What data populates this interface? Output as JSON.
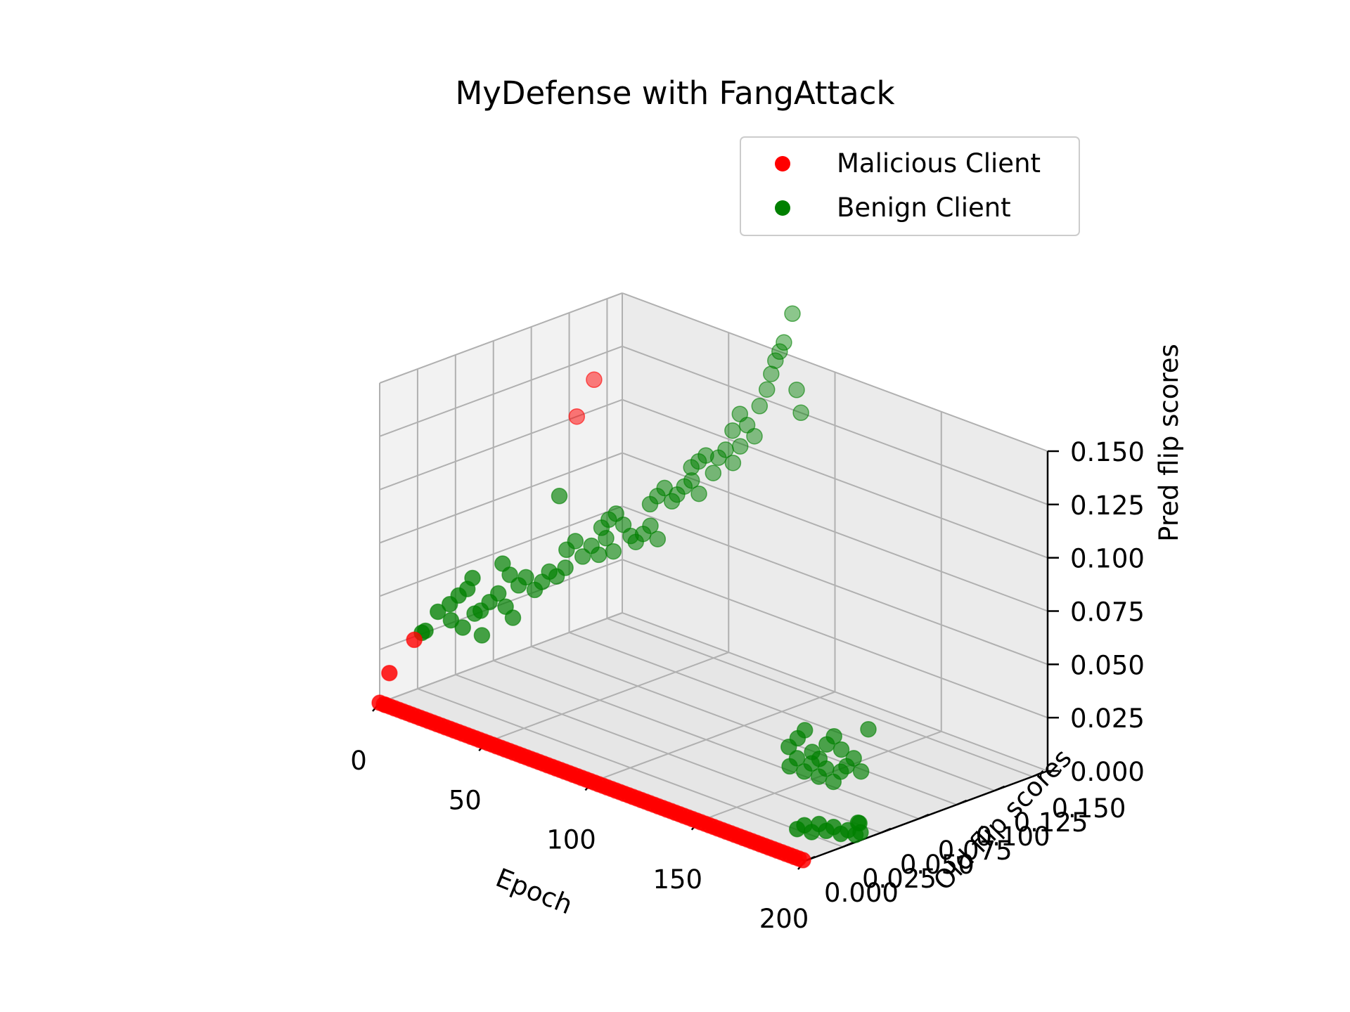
{
  "chart_data": {
    "type": "scatter",
    "projection": "3d",
    "title": "MyDefense with FangAttack",
    "xlabel": "Epoch",
    "ylabel": "Old flip scores",
    "zlabel": "Pred flip scores",
    "xlim": [
      0,
      200
    ],
    "ylim": [
      0,
      0.16
    ],
    "zlim": [
      0,
      0.15
    ],
    "xticks": [
      "0",
      "50",
      "100",
      "150",
      "200"
    ],
    "yticks": [
      "0.000",
      "0.025",
      "0.050",
      "0.075",
      "0.100",
      "0.125",
      "0.150"
    ],
    "zticks": [
      "0.000",
      "0.025",
      "0.050",
      "0.075",
      "0.100",
      "0.125",
      "0.150"
    ],
    "grid": true,
    "legend_position": "top-right",
    "series": [
      {
        "name": "Malicious Client",
        "color": "#ff0000",
        "points": [
          [
            0,
            0,
            0
          ],
          [
            2,
            0,
            0
          ],
          [
            3,
            0,
            0
          ],
          [
            5,
            0,
            0
          ],
          [
            7,
            0,
            0
          ],
          [
            9,
            0,
            0
          ],
          [
            11,
            0,
            0
          ],
          [
            13,
            0,
            0
          ],
          [
            15,
            0,
            0
          ],
          [
            17,
            0,
            0
          ],
          [
            19,
            0,
            0
          ],
          [
            21,
            0,
            0
          ],
          [
            23,
            0,
            0
          ],
          [
            25,
            0,
            0
          ],
          [
            27,
            0,
            0
          ],
          [
            29,
            0,
            0
          ],
          [
            31,
            0,
            0
          ],
          [
            33,
            0,
            0
          ],
          [
            35,
            0,
            0
          ],
          [
            37,
            0,
            0
          ],
          [
            39,
            0,
            0
          ],
          [
            41,
            0,
            0
          ],
          [
            43,
            0,
            0
          ],
          [
            45,
            0,
            0
          ],
          [
            47,
            0,
            0
          ],
          [
            49,
            0,
            0
          ],
          [
            51,
            0,
            0
          ],
          [
            53,
            0,
            0
          ],
          [
            55,
            0,
            0
          ],
          [
            57,
            0,
            0
          ],
          [
            59,
            0,
            0
          ],
          [
            61,
            0,
            0
          ],
          [
            63,
            0,
            0
          ],
          [
            65,
            0,
            0
          ],
          [
            67,
            0,
            0
          ],
          [
            69,
            0,
            0
          ],
          [
            71,
            0,
            0
          ],
          [
            73,
            0,
            0
          ],
          [
            75,
            0,
            0
          ],
          [
            77,
            0,
            0
          ],
          [
            79,
            0,
            0
          ],
          [
            81,
            0,
            0
          ],
          [
            83,
            0,
            0
          ],
          [
            85,
            0,
            0
          ],
          [
            87,
            0,
            0
          ],
          [
            89,
            0,
            0
          ],
          [
            91,
            0,
            0
          ],
          [
            93,
            0,
            0
          ],
          [
            95,
            0,
            0
          ],
          [
            97,
            0,
            0
          ],
          [
            99,
            0,
            0
          ],
          [
            101,
            0,
            0
          ],
          [
            103,
            0,
            0
          ],
          [
            105,
            0,
            0
          ],
          [
            107,
            0,
            0
          ],
          [
            109,
            0,
            0
          ],
          [
            111,
            0,
            0
          ],
          [
            113,
            0,
            0
          ],
          [
            115,
            0,
            0
          ],
          [
            117,
            0,
            0
          ],
          [
            119,
            0,
            0
          ],
          [
            121,
            0,
            0
          ],
          [
            123,
            0,
            0
          ],
          [
            125,
            0,
            0
          ],
          [
            127,
            0,
            0
          ],
          [
            129,
            0,
            0
          ],
          [
            131,
            0,
            0
          ],
          [
            133,
            0,
            0
          ],
          [
            135,
            0,
            0
          ],
          [
            137,
            0,
            0
          ],
          [
            139,
            0,
            0
          ],
          [
            141,
            0,
            0
          ],
          [
            143,
            0,
            0
          ],
          [
            145,
            0,
            0
          ],
          [
            147,
            0,
            0
          ],
          [
            149,
            0,
            0
          ],
          [
            151,
            0,
            0
          ],
          [
            153,
            0,
            0
          ],
          [
            155,
            0,
            0
          ],
          [
            157,
            0,
            0
          ],
          [
            159,
            0,
            0
          ],
          [
            161,
            0,
            0
          ],
          [
            163,
            0,
            0
          ],
          [
            165,
            0,
            0
          ],
          [
            167,
            0,
            0
          ],
          [
            169,
            0,
            0
          ],
          [
            171,
            0,
            0
          ],
          [
            173,
            0,
            0
          ],
          [
            175,
            0,
            0
          ],
          [
            177,
            0,
            0
          ],
          [
            179,
            0,
            0
          ],
          [
            181,
            0,
            0
          ],
          [
            183,
            0,
            0
          ],
          [
            185,
            0,
            0
          ],
          [
            187,
            0,
            0
          ],
          [
            189,
            0,
            0
          ],
          [
            191,
            0,
            0
          ],
          [
            193,
            0,
            0
          ],
          [
            195,
            0,
            0
          ],
          [
            197,
            0,
            0
          ],
          [
            199,
            0,
            0
          ],
          [
            1,
            0.005,
            0.013
          ],
          [
            2,
            0.02,
            0.025
          ],
          [
            0,
            0.13,
            0.1
          ],
          [
            1,
            0.14,
            0.115
          ]
        ]
      },
      {
        "name": "Benign Client",
        "color": "#008000",
        "points": [
          [
            2,
            0.025,
            0.027
          ],
          [
            3,
            0.026,
            0.028
          ],
          [
            5,
            0.04,
            0.03
          ],
          [
            7,
            0.045,
            0.026
          ],
          [
            9,
            0.05,
            0.032
          ],
          [
            11,
            0.052,
            0.022
          ],
          [
            6,
            0.03,
            0.037
          ],
          [
            8,
            0.035,
            0.04
          ],
          [
            10,
            0.038,
            0.044
          ],
          [
            12,
            0.041,
            0.047
          ],
          [
            13,
            0.043,
            0.052
          ],
          [
            14,
            0.047,
            0.036
          ],
          [
            16,
            0.05,
            0.04
          ],
          [
            18,
            0.053,
            0.044
          ],
          [
            20,
            0.055,
            0.038
          ],
          [
            22,
            0.057,
            0.033
          ],
          [
            15,
            0.06,
            0.055
          ],
          [
            17,
            0.062,
            0.05
          ],
          [
            19,
            0.065,
            0.045
          ],
          [
            21,
            0.067,
            0.049
          ],
          [
            23,
            0.07,
            0.043
          ],
          [
            25,
            0.072,
            0.047
          ],
          [
            27,
            0.074,
            0.052
          ],
          [
            29,
            0.076,
            0.05
          ],
          [
            31,
            0.079,
            0.054
          ],
          [
            26,
            0.082,
            0.085
          ],
          [
            28,
            0.084,
            0.06
          ],
          [
            30,
            0.087,
            0.064
          ],
          [
            32,
            0.089,
            0.057
          ],
          [
            34,
            0.092,
            0.062
          ],
          [
            36,
            0.094,
            0.058
          ],
          [
            38,
            0.096,
            0.066
          ],
          [
            40,
            0.098,
            0.06
          ],
          [
            33,
            0.1,
            0.068
          ],
          [
            35,
            0.102,
            0.072
          ],
          [
            37,
            0.104,
            0.075
          ],
          [
            39,
            0.106,
            0.07
          ],
          [
            41,
            0.108,
            0.065
          ],
          [
            42,
            0.11,
            0.062
          ],
          [
            44,
            0.112,
            0.066
          ],
          [
            46,
            0.114,
            0.07
          ],
          [
            48,
            0.116,
            0.064
          ],
          [
            43,
            0.118,
            0.078
          ],
          [
            45,
            0.12,
            0.082
          ],
          [
            47,
            0.122,
            0.086
          ],
          [
            49,
            0.124,
            0.08
          ],
          [
            50,
            0.126,
            0.083
          ],
          [
            52,
            0.128,
            0.087
          ],
          [
            54,
            0.13,
            0.09
          ],
          [
            56,
            0.132,
            0.084
          ],
          [
            51,
            0.134,
            0.094
          ],
          [
            53,
            0.136,
            0.097
          ],
          [
            55,
            0.138,
            0.1
          ],
          [
            57,
            0.14,
            0.092
          ],
          [
            58,
            0.142,
            0.099
          ],
          [
            60,
            0.144,
            0.103
          ],
          [
            62,
            0.146,
            0.097
          ],
          [
            64,
            0.148,
            0.105
          ],
          [
            59,
            0.15,
            0.11
          ],
          [
            61,
            0.152,
            0.118
          ],
          [
            63,
            0.154,
            0.113
          ],
          [
            65,
            0.156,
            0.108
          ],
          [
            66,
            0.158,
            0.122
          ],
          [
            68,
            0.16,
            0.13
          ],
          [
            70,
            0.16,
            0.138
          ],
          [
            72,
            0.16,
            0.145
          ],
          [
            74,
            0.16,
            0.15
          ],
          [
            76,
            0.16,
            0.155
          ],
          [
            80,
            0.16,
            0.17
          ],
          [
            82,
            0.16,
            0.135
          ],
          [
            84,
            0.16,
            0.125
          ],
          [
            150,
            0.06,
            0.01
          ],
          [
            152,
            0.062,
            0.014
          ],
          [
            154,
            0.064,
            0.008
          ],
          [
            156,
            0.066,
            0.012
          ],
          [
            158,
            0.068,
            0.006
          ],
          [
            160,
            0.07,
            0.01
          ],
          [
            162,
            0.072,
            0.004
          ],
          [
            164,
            0.074,
            0.009
          ],
          [
            151,
            0.058,
            0.02
          ],
          [
            153,
            0.061,
            0.024
          ],
          [
            155,
            0.063,
            0.028
          ],
          [
            157,
            0.065,
            0.018
          ],
          [
            159,
            0.067,
            0.015
          ],
          [
            161,
            0.069,
            0.022
          ],
          [
            163,
            0.071,
            0.026
          ],
          [
            165,
            0.073,
            0.02
          ],
          [
            166,
            0.075,
            0.012
          ],
          [
            168,
            0.077,
            0.016
          ],
          [
            170,
            0.079,
            0.01
          ],
          [
            172,
            0.081,
            0.03
          ],
          [
            182,
            0.02,
            0.003
          ],
          [
            184,
            0.022,
            0.005
          ],
          [
            186,
            0.024,
            0.002
          ],
          [
            188,
            0.026,
            0.006
          ],
          [
            190,
            0.028,
            0.003
          ],
          [
            192,
            0.03,
            0.005
          ],
          [
            194,
            0.032,
            0.002
          ],
          [
            196,
            0.034,
            0.004
          ],
          [
            198,
            0.036,
            0.002
          ],
          [
            199,
            0.038,
            0.003
          ],
          [
            197,
            0.04,
            0.006
          ],
          [
            195,
            0.042,
            0.005
          ]
        ]
      }
    ]
  }
}
